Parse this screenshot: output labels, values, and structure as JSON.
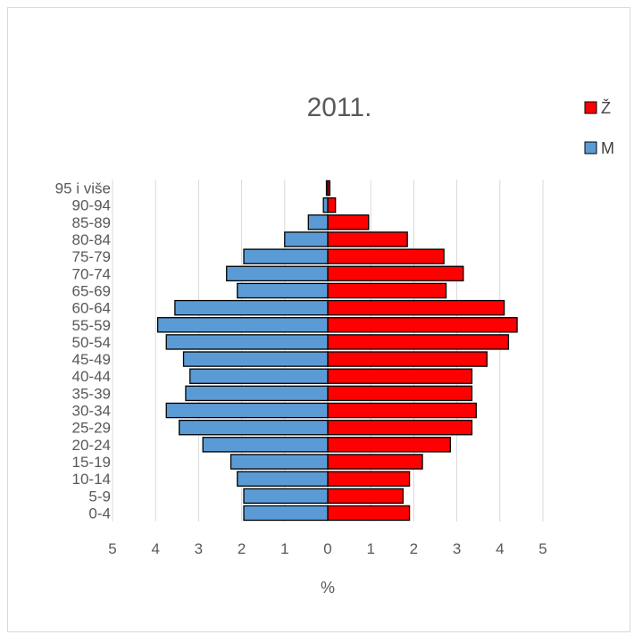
{
  "chart_data": {
    "type": "bar",
    "orientation": "horizontal",
    "title": "2011.",
    "xlabel": "%",
    "ylabel": "",
    "categories": [
      "0-4",
      "5-9",
      "10-14",
      "15-19",
      "20-24",
      "25-29",
      "30-34",
      "35-39",
      "40-44",
      "45-49",
      "50-54",
      "55-59",
      "60-64",
      "65-69",
      "70-74",
      "75-79",
      "80-84",
      "85-89",
      "90-94",
      "95 i više"
    ],
    "series": [
      {
        "name": "Ž",
        "color": "#ff0000",
        "side": "right",
        "values": [
          1.9,
          1.75,
          1.9,
          2.2,
          2.85,
          3.35,
          3.45,
          3.35,
          3.35,
          3.7,
          4.2,
          4.4,
          4.1,
          2.75,
          3.15,
          2.7,
          1.85,
          0.95,
          0.18,
          0.05
        ]
      },
      {
        "name": "M",
        "color": "#5b9bd5",
        "side": "left",
        "values": [
          1.95,
          1.95,
          2.1,
          2.25,
          2.9,
          3.45,
          3.75,
          3.3,
          3.2,
          3.35,
          3.75,
          3.95,
          3.55,
          2.1,
          2.35,
          1.95,
          1.0,
          0.45,
          0.1,
          0.03
        ]
      }
    ],
    "xticks": [
      "5",
      "4",
      "3",
      "2",
      "1",
      "0",
      "1",
      "2",
      "3",
      "4",
      "5"
    ],
    "xlim": [
      -5,
      5
    ],
    "grid": true,
    "legend_position": "top-right"
  }
}
